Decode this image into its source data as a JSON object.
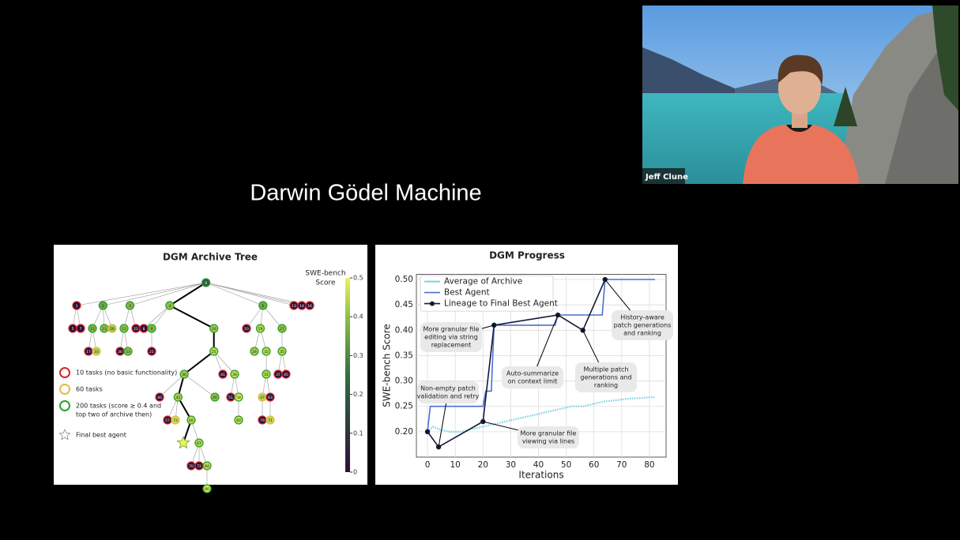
{
  "video": {
    "name": "Jeff Clune"
  },
  "slide": {
    "title": "Darwin Gödel Machine"
  },
  "tree": {
    "title": "DGM Archive Tree",
    "colorbar": {
      "label": [
        "SWE-bench",
        "Score"
      ],
      "lim": [
        0,
        0.5
      ],
      "ticks": [
        0,
        0.1,
        0.2,
        0.3,
        0.4,
        0.5
      ]
    },
    "legend": [
      {
        "lines": [
          "10 tasks (no basic functionality)"
        ],
        "tasks": 10,
        "color": "#d62728"
      },
      {
        "lines": [
          "60 tasks"
        ],
        "tasks": 60,
        "color": "#e6b94a"
      },
      {
        "lines": [
          "200 tasks (score ≥ 0.4 and",
          "top two of archive then)"
        ],
        "tasks": 200,
        "color": "#2ca02c"
      },
      {
        "lines": [
          "Final best agent"
        ],
        "marker": "star"
      }
    ],
    "nodes": [
      {
        "label": "0",
        "parent": null,
        "score": 0.2,
        "tasks": 200,
        "lineage": true
      },
      {
        "label": "1",
        "parent": 0,
        "score": 0,
        "tasks": 10
      },
      {
        "label": "2",
        "parent": 0,
        "score": 0.35,
        "tasks": 200
      },
      {
        "label": "3",
        "parent": 0,
        "score": 0.38,
        "tasks": 200
      },
      {
        "label": "4",
        "parent": 0,
        "score": 0.4,
        "tasks": 200,
        "lineage": true
      },
      {
        "label": "6",
        "parent": 0,
        "score": 0.36,
        "tasks": 200
      },
      {
        "label": "13",
        "parent": 0,
        "score": 0,
        "tasks": 10
      },
      {
        "label": "14",
        "parent": 0,
        "score": 0,
        "tasks": 10
      },
      {
        "label": "16",
        "parent": 0,
        "score": 0,
        "tasks": 10
      },
      {
        "label": "5",
        "parent": 1,
        "score": 0,
        "tasks": 10
      },
      {
        "label": "7",
        "parent": 1,
        "score": 0,
        "tasks": 10
      },
      {
        "label": "12",
        "parent": 2,
        "score": 0.38,
        "tasks": 200
      },
      {
        "label": "23",
        "parent": 2,
        "score": 0.4,
        "tasks": 200
      },
      {
        "label": "26",
        "parent": 2,
        "score": 0.42,
        "tasks": 60
      },
      {
        "label": "11",
        "parent": 3,
        "score": 0.4,
        "tasks": 200
      },
      {
        "label": "22",
        "parent": 3,
        "score": 0,
        "tasks": 10
      },
      {
        "label": "8",
        "parent": 4,
        "score": 0,
        "tasks": 10
      },
      {
        "label": "9",
        "parent": 4,
        "score": 0.38,
        "tasks": 200
      },
      {
        "label": "20",
        "parent": 4,
        "score": 0.42,
        "tasks": 200,
        "lineage": true
      },
      {
        "label": "10",
        "parent": 5,
        "score": 0,
        "tasks": 10
      },
      {
        "label": "19",
        "parent": 5,
        "score": 0.44,
        "tasks": 200
      },
      {
        "label": "27",
        "parent": 5,
        "score": 0.4,
        "tasks": 200
      },
      {
        "label": "17",
        "parent": 11,
        "score": 0,
        "tasks": 10
      },
      {
        "label": "33",
        "parent": 11,
        "score": 0.44,
        "tasks": 60
      },
      {
        "label": "30",
        "parent": 14,
        "score": 0,
        "tasks": 10
      },
      {
        "label": "53",
        "parent": 14,
        "score": 0.4,
        "tasks": 200
      },
      {
        "label": "21",
        "parent": 17,
        "score": 0,
        "tasks": 10
      },
      {
        "label": "25",
        "parent": 18,
        "score": 0.45,
        "tasks": 200,
        "lineage": true
      },
      {
        "label": "28",
        "parent": 20,
        "score": 0.43,
        "tasks": 200
      },
      {
        "label": "32",
        "parent": 20,
        "score": 0.45,
        "tasks": 200
      },
      {
        "label": "35",
        "parent": 21,
        "score": 0.44,
        "tasks": 200
      },
      {
        "label": "36",
        "parent": 27,
        "score": 0.42,
        "tasks": 200,
        "lineage": true
      },
      {
        "label": "41",
        "parent": 27,
        "score": 0,
        "tasks": 10
      },
      {
        "label": "39",
        "parent": 27,
        "score": 0.45,
        "tasks": 200
      },
      {
        "label": "31",
        "parent": 29,
        "score": 0.44,
        "tasks": 200
      },
      {
        "label": "37",
        "parent": 30,
        "score": 0,
        "tasks": 10
      },
      {
        "label": "45",
        "parent": 30,
        "score": 0,
        "tasks": 10
      },
      {
        "label": "40",
        "parent": 31,
        "score": 0,
        "tasks": 10
      },
      {
        "label": "42",
        "parent": 31,
        "score": 0.43,
        "tasks": 200,
        "lineage": true
      },
      {
        "label": "46",
        "parent": 31,
        "score": 0.4,
        "tasks": 200
      },
      {
        "label": "51",
        "parent": 33,
        "score": 0,
        "tasks": 10
      },
      {
        "label": "58",
        "parent": 33,
        "score": 0.48,
        "tasks": 200
      },
      {
        "label": "47",
        "parent": 34,
        "score": 0.44,
        "tasks": 60
      },
      {
        "label": "63",
        "parent": 34,
        "score": 0,
        "tasks": 10
      },
      {
        "label": "57",
        "parent": 38,
        "score": 0,
        "tasks": 10
      },
      {
        "label": "73",
        "parent": 38,
        "score": 0.46,
        "tasks": 60
      },
      {
        "label": "66",
        "parent": 38,
        "score": 0.45,
        "tasks": 200,
        "lineage": true
      },
      {
        "label": "60",
        "parent": 41,
        "score": 0.45,
        "tasks": 200
      },
      {
        "label": "79",
        "parent": 42,
        "score": 0,
        "tasks": 10
      },
      {
        "label": "71",
        "parent": 43,
        "score": 0.45,
        "tasks": 60
      },
      {
        "label": null,
        "parent": 46,
        "score": 0.5,
        "tasks": 200,
        "lineage": true,
        "final": true
      },
      {
        "label": "67",
        "parent": 46,
        "score": 0.44,
        "tasks": 200
      },
      {
        "label": "70",
        "parent": 51,
        "score": 0,
        "tasks": 10
      },
      {
        "label": "72",
        "parent": 51,
        "score": 0,
        "tasks": 10
      },
      {
        "label": "84",
        "parent": 51,
        "score": 0.45,
        "tasks": 200
      },
      {
        "label": "80",
        "parent": 54,
        "score": 0.47,
        "tasks": 200
      }
    ]
  },
  "chart_data": {
    "type": "line",
    "title": "DGM Progress",
    "xlabel": "Iterations",
    "ylabel": "SWE-bench Score",
    "xlim": [
      -4,
      86
    ],
    "ylim": [
      0.15,
      0.51
    ],
    "xticks": [
      0,
      10,
      20,
      30,
      40,
      50,
      60,
      70,
      80
    ],
    "yticks": [
      {
        "value": 0.2,
        "label": "0.20"
      },
      0.25,
      {
        "value": 0.3,
        "label": "0.30"
      },
      0.35,
      {
        "value": 0.4,
        "label": "0.40"
      },
      0.45,
      {
        "value": 0.5,
        "label": "0.50"
      }
    ],
    "grid": true,
    "legend": "upper left",
    "series": [
      {
        "name": "Average of Archive",
        "color": "#7fd0e6",
        "x": [
          0,
          2,
          4,
          8,
          12,
          16,
          20,
          24,
          28,
          32,
          36,
          40,
          44,
          48,
          52,
          56,
          60,
          64,
          68,
          72,
          76,
          80,
          82
        ],
        "values": [
          0.2,
          0.21,
          0.205,
          0.2,
          0.2,
          0.205,
          0.21,
          0.215,
          0.22,
          0.225,
          0.23,
          0.235,
          0.24,
          0.245,
          0.25,
          0.25,
          0.255,
          0.26,
          0.262,
          0.265,
          0.266,
          0.268,
          0.268
        ]
      },
      {
        "name": "Best Agent",
        "color": "#4a6fd6",
        "x": [
          0,
          1,
          20,
          21,
          23,
          24,
          46,
          47,
          63,
          64,
          82
        ],
        "values": [
          0.2,
          0.25,
          0.25,
          0.28,
          0.28,
          0.41,
          0.41,
          0.43,
          0.43,
          0.5,
          0.5
        ]
      },
      {
        "name": "Lineage to Final Best Agent",
        "color": "#151a33",
        "x": [
          0,
          4,
          20,
          24,
          47,
          56,
          64
        ],
        "values": [
          0.2,
          0.17,
          0.22,
          0.41,
          0.43,
          0.4,
          0.5
        ]
      }
    ],
    "annotations": [
      {
        "lines": [
          "Non-empty patch",
          "validation and retry"
        ],
        "x": 4,
        "y": 0.17
      },
      {
        "lines": [
          "More granular file",
          "viewing via lines"
        ],
        "x": 20,
        "y": 0.22
      },
      {
        "lines": [
          "More granular file",
          "editing via string",
          "replacement"
        ],
        "x": 24,
        "y": 0.41
      },
      {
        "lines": [
          "Auto-summarize",
          "on context limit"
        ],
        "x": 47,
        "y": 0.43
      },
      {
        "lines": [
          "Multiple patch",
          "generations and",
          "ranking"
        ],
        "x": 56,
        "y": 0.4
      },
      {
        "lines": [
          "History-aware",
          "patch generations",
          "and ranking"
        ],
        "x": 64,
        "y": 0.5
      }
    ]
  }
}
